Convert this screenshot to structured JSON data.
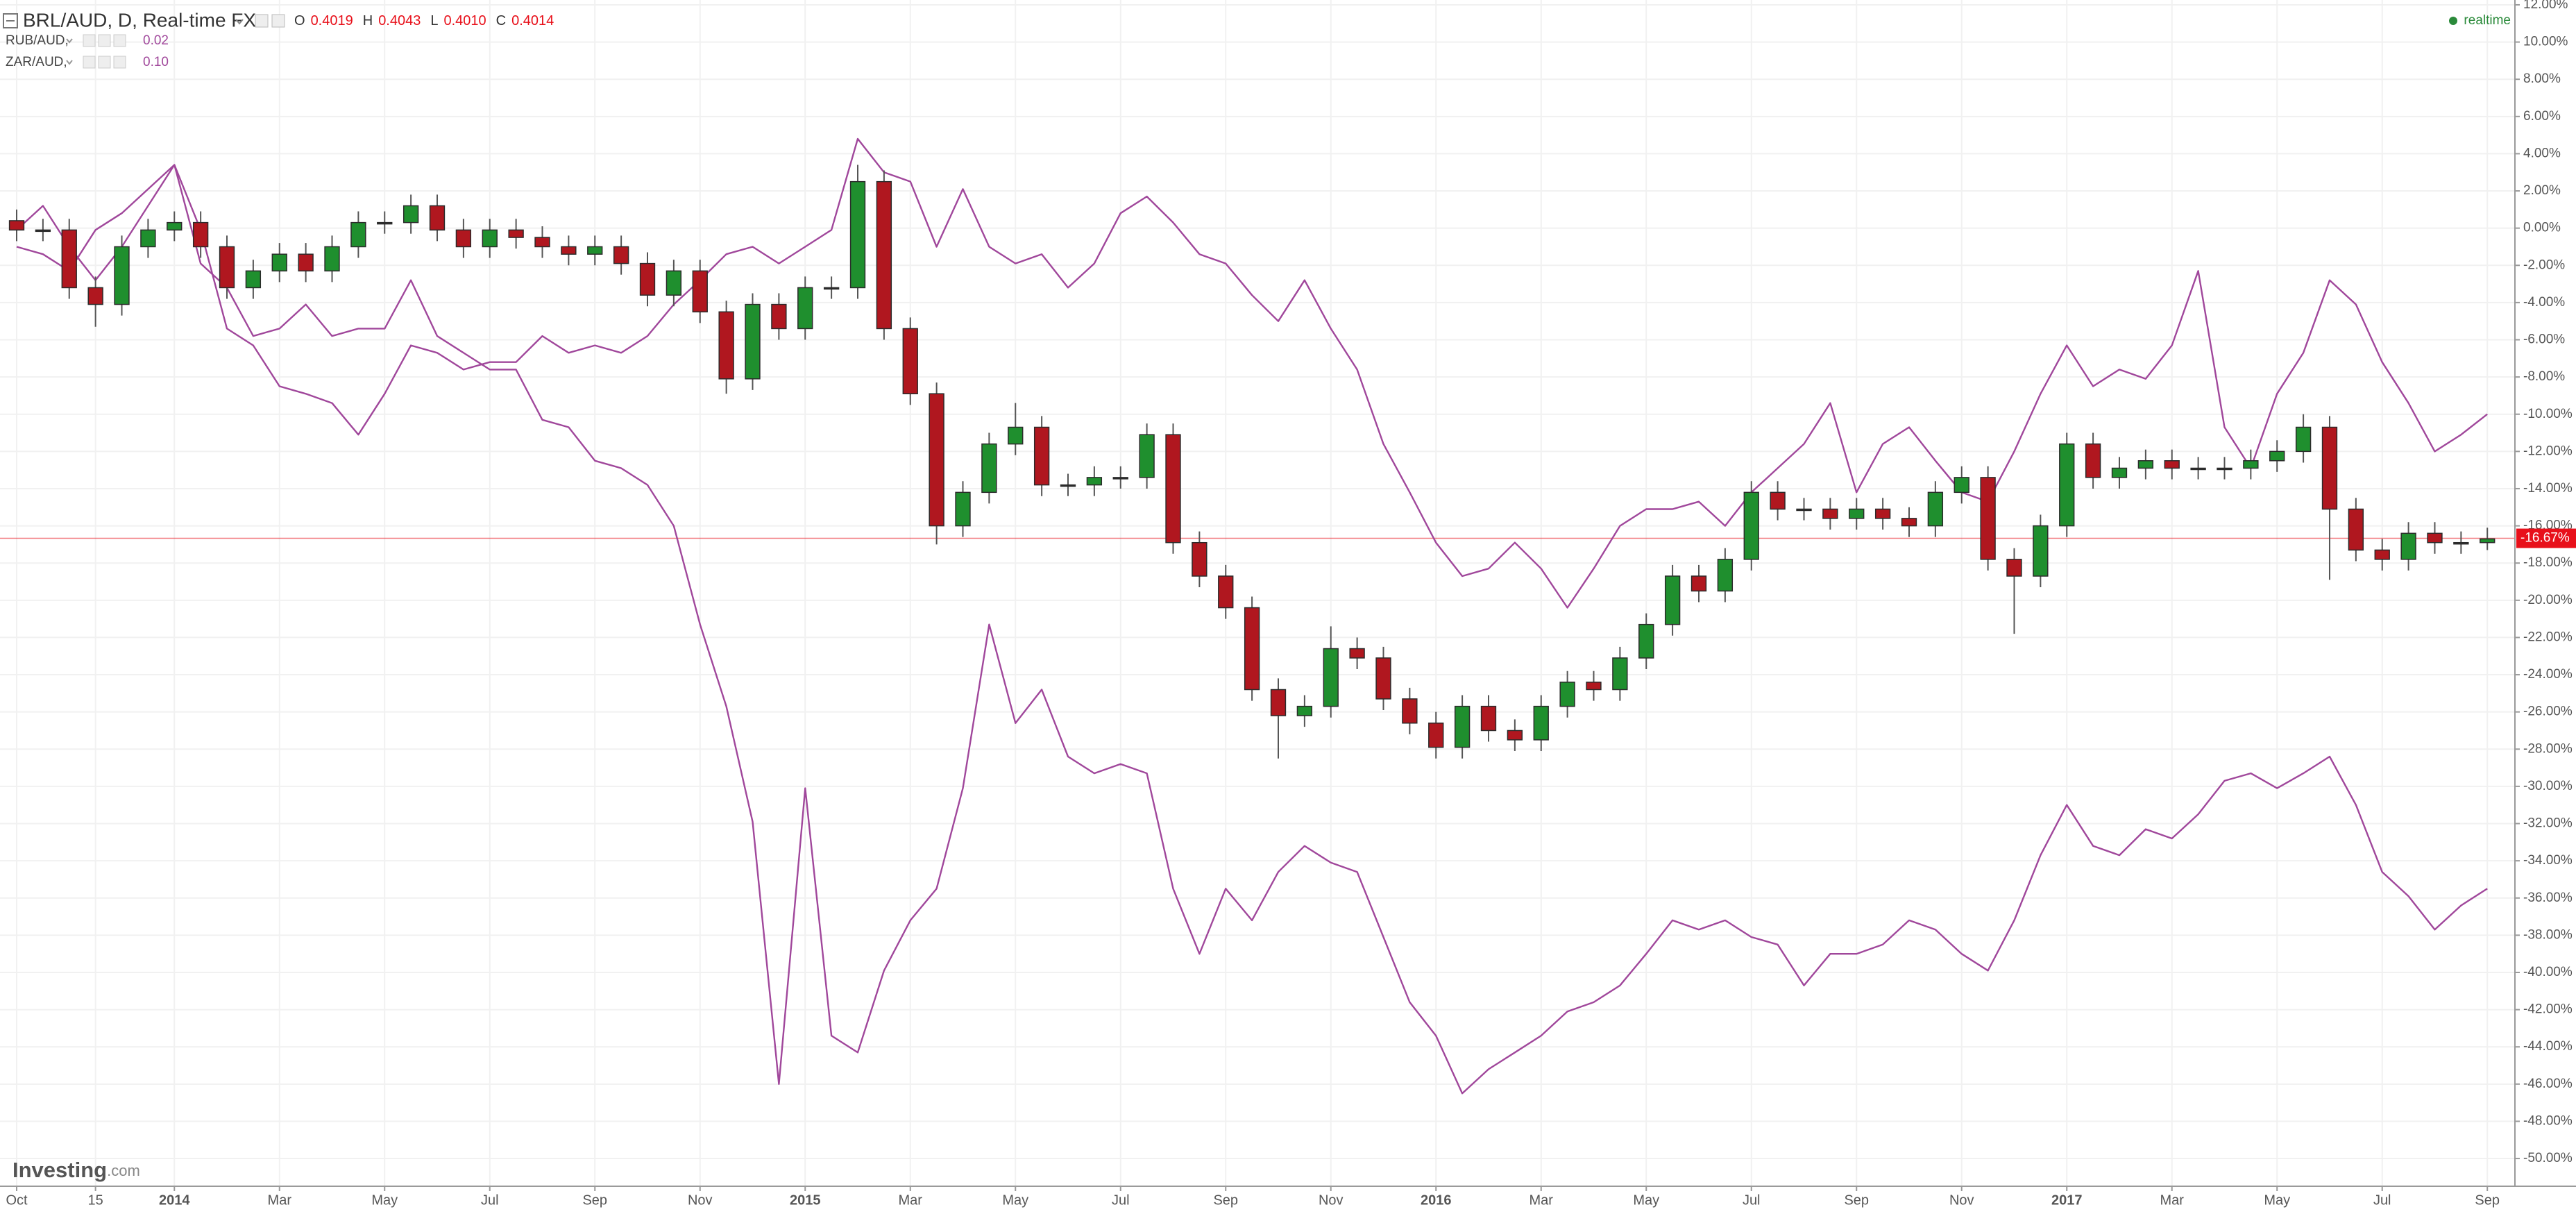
{
  "header": {
    "symbol": "BRL/AUD, D, Real-time FX",
    "ohlc": [
      {
        "key": "O",
        "value": "0.4019"
      },
      {
        "key": "H",
        "value": "0.4043"
      },
      {
        "key": "L",
        "value": "0.4010"
      },
      {
        "key": "C",
        "value": "0.4014"
      }
    ],
    "status": "realtime",
    "logo": "Investing",
    "logo_suffix": ".com"
  },
  "chart_data": {
    "type": "candlestick",
    "name": "BRL/AUD",
    "x": [
      0,
      0.5,
      1,
      1.5,
      2,
      2.5,
      3,
      3.5,
      4,
      4.5,
      5,
      5.5,
      6,
      6.5,
      7,
      7.5,
      8,
      8.5,
      9,
      9.5,
      10,
      10.5,
      11,
      11.5,
      12,
      12.5,
      13,
      13.5,
      14,
      14.5,
      15,
      15.5,
      16,
      16.5,
      17,
      17.5,
      18,
      18.5,
      19,
      19.5,
      20,
      20.5,
      21,
      21.5,
      22,
      22.5,
      23,
      23.5,
      24,
      24.5,
      25,
      25.5,
      26,
      26.5,
      27,
      27.5,
      28,
      28.5,
      29,
      29.5,
      30,
      30.5,
      31,
      31.5,
      32,
      32.5,
      33,
      33.5,
      34,
      34.5,
      35,
      35.5,
      36,
      36.5,
      37,
      37.5,
      38,
      38.5,
      39,
      39.5,
      40,
      40.5,
      41,
      41.5,
      42,
      42.5,
      43,
      43.5,
      44,
      44.5,
      45,
      45.5,
      46,
      46.5,
      47
    ],
    "open": [
      0.4,
      -0.1,
      -0.1,
      -3.2,
      -4.1,
      -1.0,
      -0.1,
      0.3,
      -1.0,
      -3.2,
      -2.3,
      -1.4,
      -2.3,
      -1.0,
      0.3,
      0.3,
      1.2,
      -0.1,
      -1.0,
      -0.1,
      -0.5,
      -1.0,
      -1.4,
      -1.0,
      -1.9,
      -3.6,
      -2.3,
      -4.5,
      -8.1,
      -4.1,
      -5.4,
      -3.2,
      -3.2,
      2.5,
      -5.4,
      -8.9,
      -16.0,
      -14.2,
      -11.6,
      -10.7,
      -13.8,
      -13.8,
      -13.4,
      -13.4,
      -11.1,
      -16.9,
      -18.7,
      -20.4,
      -24.8,
      -26.2,
      -25.7,
      -22.6,
      -23.1,
      -25.3,
      -26.6,
      -27.9,
      -25.7,
      -27.0,
      -27.5,
      -25.7,
      -24.4,
      -24.8,
      -23.1,
      -21.3,
      -18.7,
      -19.5,
      -17.8,
      -14.2,
      -15.1,
      -15.1,
      -15.6,
      -15.1,
      -15.6,
      -16.0,
      -14.2,
      -13.4,
      -17.8,
      -18.7,
      -16.0,
      -11.6,
      -13.4,
      -12.9,
      -12.5,
      -12.9,
      -12.9,
      -12.9,
      -12.5,
      -12.0,
      -10.7,
      -15.1,
      -17.3,
      -17.8,
      -16.4,
      -16.9,
      -16.9
    ],
    "high": [
      1.0,
      0.5,
      0.5,
      -2.6,
      -0.4,
      0.5,
      0.9,
      0.9,
      -0.4,
      -1.7,
      -0.8,
      -0.8,
      -0.4,
      0.9,
      0.9,
      1.8,
      1.8,
      0.5,
      0.5,
      0.5,
      0.1,
      -0.4,
      -0.4,
      -0.4,
      -1.3,
      -1.7,
      -1.7,
      -3.9,
      -3.5,
      -3.5,
      -2.6,
      -2.6,
      3.4,
      3.1,
      -4.8,
      -8.3,
      -13.6,
      -11.0,
      -9.4,
      -10.1,
      -13.2,
      -12.8,
      -12.8,
      -10.5,
      -10.5,
      -16.3,
      -18.1,
      -19.8,
      -24.2,
      -25.1,
      -21.4,
      -22.0,
      -22.5,
      -24.7,
      -26.0,
      -25.1,
      -25.1,
      -26.4,
      -25.1,
      -23.8,
      -23.8,
      -22.5,
      -20.7,
      -18.1,
      -18.1,
      -17.2,
      -13.6,
      -13.6,
      -14.5,
      -14.5,
      -14.5,
      -14.5,
      -15.0,
      -13.6,
      -12.8,
      -12.8,
      -17.2,
      -15.4,
      -11.0,
      -11.0,
      -12.3,
      -11.9,
      -11.9,
      -12.3,
      -12.3,
      -11.9,
      -11.4,
      -10.0,
      -10.1,
      -14.5,
      -16.7,
      -15.8,
      -15.8,
      -16.3,
      -16.1
    ],
    "low": [
      -0.7,
      -0.7,
      -3.8,
      -5.3,
      -4.7,
      -1.6,
      -0.7,
      -1.6,
      -3.8,
      -3.8,
      -2.9,
      -2.9,
      -2.9,
      -1.6,
      -0.3,
      -0.3,
      -0.7,
      -1.6,
      -1.6,
      -1.1,
      -1.6,
      -2.0,
      -2.0,
      -2.5,
      -4.2,
      -4.2,
      -5.1,
      -8.9,
      -8.7,
      -6.0,
      -6.0,
      -3.8,
      -3.8,
      -6.0,
      -9.5,
      -17.0,
      -16.6,
      -14.8,
      -12.2,
      -14.4,
      -14.4,
      -14.4,
      -14.0,
      -14.0,
      -17.5,
      -19.3,
      -21.0,
      -25.4,
      -28.5,
      -26.8,
      -26.3,
      -23.7,
      -25.9,
      -27.2,
      -28.5,
      -28.5,
      -27.6,
      -28.1,
      -28.1,
      -26.3,
      -25.4,
      -25.4,
      -23.7,
      -21.9,
      -20.1,
      -20.1,
      -18.4,
      -15.7,
      -15.7,
      -16.2,
      -16.2,
      -16.2,
      -16.6,
      -16.6,
      -14.8,
      -18.4,
      -21.8,
      -19.3,
      -16.6,
      -14.0,
      -14.0,
      -13.5,
      -13.5,
      -13.5,
      -13.5,
      -13.5,
      -13.1,
      -12.6,
      -18.9,
      -17.9,
      -18.4,
      -18.4,
      -17.5,
      -17.5,
      -17.3
    ],
    "close": [
      -0.1,
      -0.1,
      -3.2,
      -4.1,
      -1.0,
      -0.1,
      0.3,
      -1.0,
      -3.2,
      -2.3,
      -1.4,
      -2.3,
      -1.0,
      0.3,
      0.3,
      1.2,
      -0.1,
      -1.0,
      -0.1,
      -0.5,
      -1.0,
      -1.4,
      -1.0,
      -1.9,
      -3.6,
      -2.3,
      -4.5,
      -8.1,
      -4.1,
      -5.4,
      -3.2,
      -3.2,
      2.5,
      -5.4,
      -8.9,
      -16.0,
      -14.2,
      -11.6,
      -10.7,
      -13.8,
      -13.8,
      -13.4,
      -13.4,
      -11.1,
      -16.9,
      -18.7,
      -20.4,
      -24.8,
      -26.2,
      -25.7,
      -22.6,
      -23.1,
      -25.3,
      -26.6,
      -27.9,
      -25.7,
      -27.0,
      -27.5,
      -25.7,
      -24.4,
      -24.8,
      -23.1,
      -21.3,
      -18.7,
      -19.5,
      -17.8,
      -14.2,
      -15.1,
      -15.1,
      -15.6,
      -15.1,
      -15.6,
      -16.0,
      -14.2,
      -13.4,
      -17.8,
      -18.7,
      -16.0,
      -11.6,
      -13.4,
      -12.9,
      -12.5,
      -12.9,
      -12.9,
      -12.9,
      -12.5,
      -12.0,
      -10.7,
      -15.1,
      -17.3,
      -17.8,
      -16.4,
      -16.9,
      -16.9,
      -16.7
    ],
    "up_color": "#1f8f2e",
    "down_color": "#b0171f",
    "outline_color": "#2b2b2b",
    "series": [
      {
        "name": "RUB/AUD,",
        "legend_value": "0.02",
        "type": "line",
        "color": "#a0479b",
        "values": [
          -0.1,
          1.2,
          -1.0,
          -2.8,
          -1.0,
          1.2,
          3.4,
          -1.9,
          -3.2,
          -5.8,
          -5.4,
          -4.1,
          -5.8,
          -5.4,
          -5.4,
          -2.8,
          -5.8,
          -6.7,
          -7.6,
          -7.6,
          -10.3,
          -10.7,
          -12.5,
          -12.9,
          -13.8,
          -16.0,
          -21.3,
          -25.7,
          -31.9,
          -46.0,
          -30.1,
          -43.4,
          -44.3,
          -39.9,
          -37.2,
          -35.5,
          -30.1,
          -21.3,
          -26.6,
          -24.8,
          -28.4,
          -29.3,
          -28.8,
          -29.3,
          -35.5,
          -39.0,
          -35.5,
          -37.2,
          -34.6,
          -33.2,
          -34.1,
          -34.6,
          -38.1,
          -41.6,
          -43.4,
          -46.5,
          -45.2,
          -44.3,
          -43.4,
          -42.1,
          -41.6,
          -40.7,
          -39.0,
          -37.2,
          -37.7,
          -37.2,
          -38.1,
          -38.5,
          -40.7,
          -39.0,
          -39.0,
          -38.5,
          -37.2,
          -37.7,
          -39.0,
          -39.9,
          -37.2,
          -33.7,
          -31.0,
          -33.2,
          -33.7,
          -32.3,
          -32.8,
          -31.5,
          -29.7,
          -29.3,
          -30.1,
          -29.3,
          -28.4,
          -31.0,
          -34.6,
          -35.9,
          -37.7,
          -36.4,
          -35.5
        ]
      },
      {
        "name": "ZAR/AUD,",
        "legend_value": "0.10",
        "type": "line",
        "color": "#a0479b",
        "values": [
          -1.0,
          -1.4,
          -2.3,
          -0.1,
          0.8,
          2.1,
          3.4,
          -0.1,
          -5.4,
          -6.3,
          -8.5,
          -8.9,
          -9.4,
          -11.1,
          -8.9,
          -6.3,
          -6.7,
          -7.6,
          -7.2,
          -7.2,
          -5.8,
          -6.7,
          -6.3,
          -6.7,
          -5.8,
          -4.1,
          -2.8,
          -1.4,
          -1.0,
          -1.9,
          -1.0,
          -0.1,
          4.8,
          3.0,
          2.5,
          -1.0,
          2.1,
          -1.0,
          -1.9,
          -1.4,
          -3.2,
          -1.9,
          0.8,
          1.7,
          0.3,
          -1.4,
          -1.9,
          -3.6,
          -5.0,
          -2.8,
          -5.4,
          -7.6,
          -11.6,
          -14.2,
          -16.9,
          -18.7,
          -18.3,
          -16.9,
          -18.3,
          -20.4,
          -18.3,
          -16.0,
          -15.1,
          -15.1,
          -14.7,
          -16.0,
          -14.2,
          -12.9,
          -11.6,
          -9.4,
          -14.2,
          -11.6,
          -10.7,
          -12.5,
          -14.2,
          -14.7,
          -12.0,
          -8.9,
          -6.3,
          -8.5,
          -7.6,
          -8.1,
          -6.3,
          -2.3,
          -10.7,
          -12.9,
          -8.9,
          -6.7,
          -2.8,
          -4.1,
          -7.2,
          -9.4,
          -12.0,
          -11.1,
          -10.0
        ]
      }
    ],
    "last_price": {
      "value": -16.67,
      "label": "-16.67%"
    },
    "last_price_color": "#e8101a",
    "xlim": [
      -0.317,
      47.525
    ],
    "xticks": [
      {
        "value": 0,
        "label": "Oct"
      },
      {
        "value": 1.5,
        "label": "15"
      },
      {
        "value": 3,
        "label": "2014"
      },
      {
        "value": 5,
        "label": "Mar"
      },
      {
        "value": 7,
        "label": "May"
      },
      {
        "value": 9,
        "label": "Jul"
      },
      {
        "value": 11,
        "label": "Sep"
      },
      {
        "value": 13,
        "label": "Nov"
      },
      {
        "value": 15,
        "label": "2015"
      },
      {
        "value": 17,
        "label": "Mar"
      },
      {
        "value": 19,
        "label": "May"
      },
      {
        "value": 21,
        "label": "Jul"
      },
      {
        "value": 23,
        "label": "Sep"
      },
      {
        "value": 25,
        "label": "Nov"
      },
      {
        "value": 27,
        "label": "2016"
      },
      {
        "value": 29,
        "label": "Mar"
      },
      {
        "value": 31,
        "label": "May"
      },
      {
        "value": 33,
        "label": "Jul"
      },
      {
        "value": 35,
        "label": "Sep"
      },
      {
        "value": 37,
        "label": "Nov"
      },
      {
        "value": 39,
        "label": "2017"
      },
      {
        "value": 41,
        "label": "Mar"
      },
      {
        "value": 43,
        "label": "May"
      },
      {
        "value": 45,
        "label": "Jul"
      },
      {
        "value": 47,
        "label": "Sep"
      }
    ],
    "ylim": [
      -51.49,
      12.26
    ],
    "yticks": [
      {
        "value": 12,
        "label": "12.00%"
      },
      {
        "value": 10,
        "label": "10.00%"
      },
      {
        "value": 8,
        "label": "8.00%"
      },
      {
        "value": 6,
        "label": "6.00%"
      },
      {
        "value": 4,
        "label": "4.00%"
      },
      {
        "value": 2,
        "label": "2.00%"
      },
      {
        "value": 0,
        "label": "0.00%"
      },
      {
        "value": -2,
        "label": "-2.00%"
      },
      {
        "value": -4,
        "label": "-4.00%"
      },
      {
        "value": -6,
        "label": "-6.00%"
      },
      {
        "value": -8,
        "label": "-8.00%"
      },
      {
        "value": -10,
        "label": "-10.00%"
      },
      {
        "value": -12,
        "label": "-12.00%"
      },
      {
        "value": -14,
        "label": "-14.00%"
      },
      {
        "value": -16,
        "label": "-16.00%"
      },
      {
        "value": -18,
        "label": "-18.00%"
      },
      {
        "value": -20,
        "label": "-20.00%"
      },
      {
        "value": -22,
        "label": "-22.00%"
      },
      {
        "value": -24,
        "label": "-24.00%"
      },
      {
        "value": -26,
        "label": "-26.00%"
      },
      {
        "value": -28,
        "label": "-28.00%"
      },
      {
        "value": -30,
        "label": "-30.00%"
      },
      {
        "value": -32,
        "label": "-32.00%"
      },
      {
        "value": -34,
        "label": "-34.00%"
      },
      {
        "value": -36,
        "label": "-36.00%"
      },
      {
        "value": -38,
        "label": "-38.00%"
      },
      {
        "value": -40,
        "label": "-40.00%"
      },
      {
        "value": -42,
        "label": "-42.00%"
      },
      {
        "value": -44,
        "label": "-44.00%"
      },
      {
        "value": -46,
        "label": "-46.00%"
      },
      {
        "value": -48,
        "label": "-48.00%"
      },
      {
        "value": -50,
        "label": "-50.00%"
      }
    ],
    "grid": true
  }
}
